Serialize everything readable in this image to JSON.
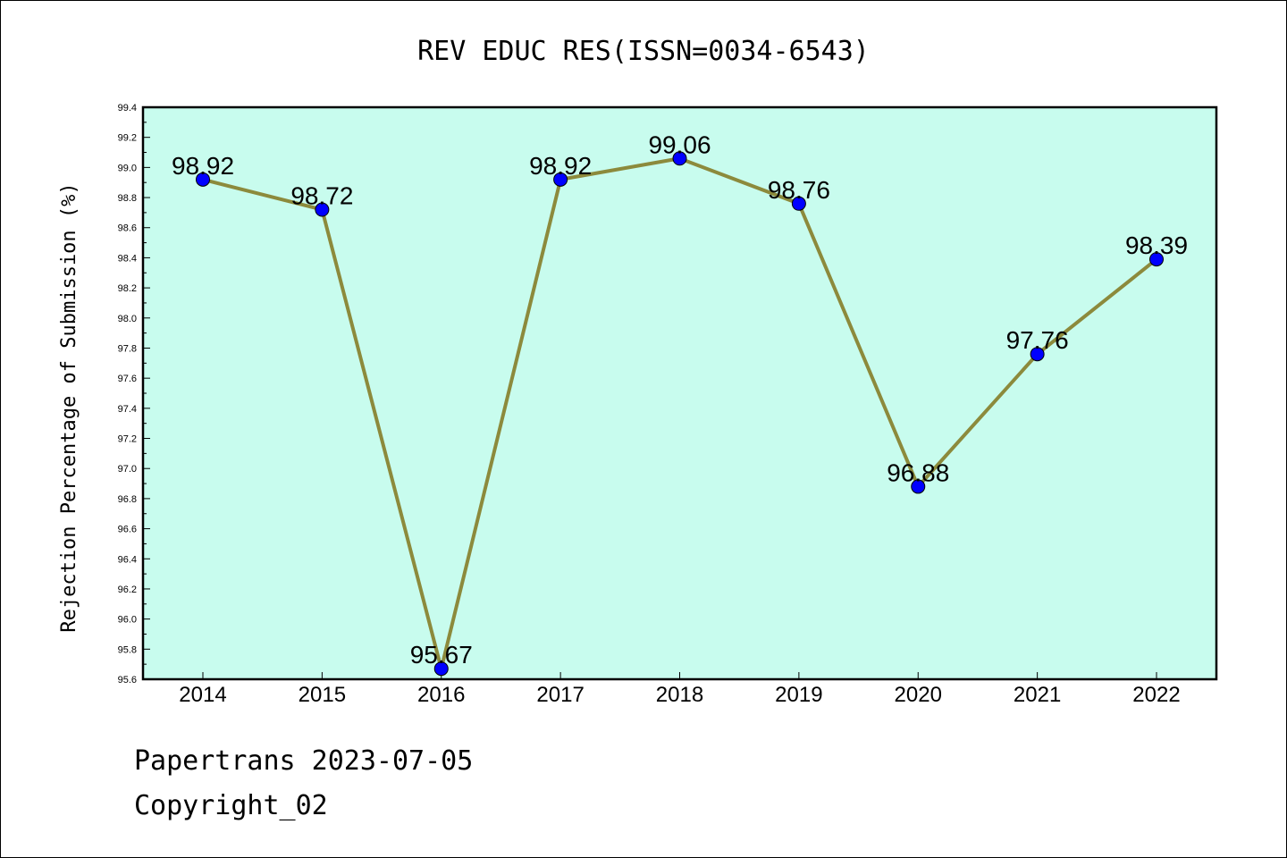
{
  "chart_data": {
    "type": "line",
    "title": "REV EDUC RES(ISSN=0034-6543)",
    "ylabel": "Rejection Percentage of Submission (%)",
    "xlabel": "",
    "categories": [
      "2014",
      "2015",
      "2016",
      "2017",
      "2018",
      "2019",
      "2020",
      "2021",
      "2022"
    ],
    "values": [
      98.92,
      98.72,
      95.67,
      98.92,
      99.06,
      98.76,
      96.88,
      97.76,
      98.39
    ],
    "data_labels": [
      "98.92",
      "98.72",
      "95.67",
      "98.92",
      "99.06",
      "98.76",
      "96.88",
      "97.76",
      "98.39"
    ],
    "ylim": [
      95.6,
      99.4
    ],
    "yticks": [
      "95.6",
      "95.8",
      "96.0",
      "96.2",
      "96.4",
      "96.6",
      "96.8",
      "97.0",
      "97.2",
      "97.4",
      "97.6",
      "97.8",
      "98.0",
      "98.2",
      "98.4",
      "98.6",
      "98.8",
      "99.0",
      "99.2",
      "99.4"
    ],
    "grid": false,
    "legend": "none",
    "colors": {
      "plot_background": "#c8fcee",
      "line": "#8c8a3c",
      "marker": "#0000ff"
    }
  },
  "footer": {
    "line1": "Papertrans 2023-07-05",
    "line2": "Copyright_02"
  }
}
